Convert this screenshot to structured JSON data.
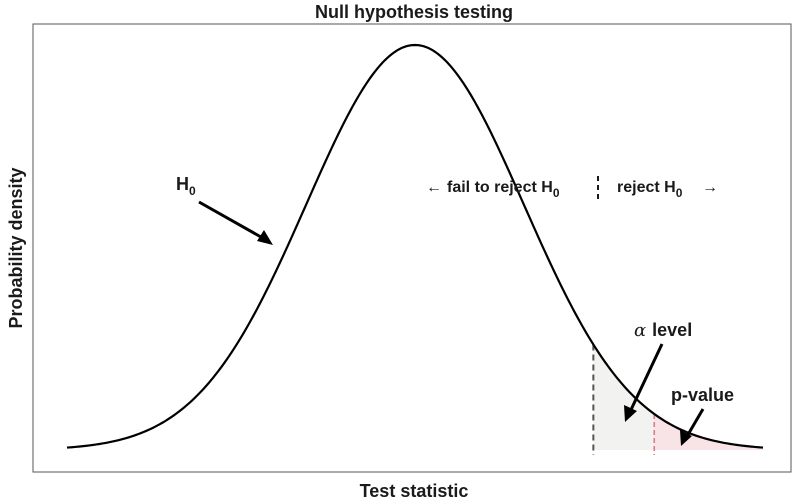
{
  "chart_data": {
    "type": "line",
    "title": "Null hypothesis testing",
    "xlabel": "Test statistic",
    "ylabel": "Probability density",
    "grid": false,
    "series": [
      {
        "name": "H0",
        "distribution": "normal",
        "mean": 0,
        "sd": 1
      }
    ],
    "xlim": [
      -3.2,
      3.2
    ],
    "critical_value": 1.64,
    "p_value_cutoff": 2.2,
    "regions": {
      "left": {
        "label": "fail to reject H",
        "sub": "0",
        "arrow": "←"
      },
      "right": {
        "label": "reject H",
        "sub": "0",
        "arrow": "→"
      }
    },
    "annotations": {
      "h0": {
        "label": "H",
        "sub": "0"
      },
      "alpha": {
        "symbol": "α",
        "label": "level"
      },
      "pvalue": {
        "label": "p-value"
      }
    },
    "colors": {
      "curve": "#000000",
      "alpha_fill": "#f2f2f0",
      "pvalue_fill": "#f8e4e6",
      "alpha_line": "#555555",
      "pvalue_line": "#e07b85",
      "frame": "#555555"
    }
  }
}
